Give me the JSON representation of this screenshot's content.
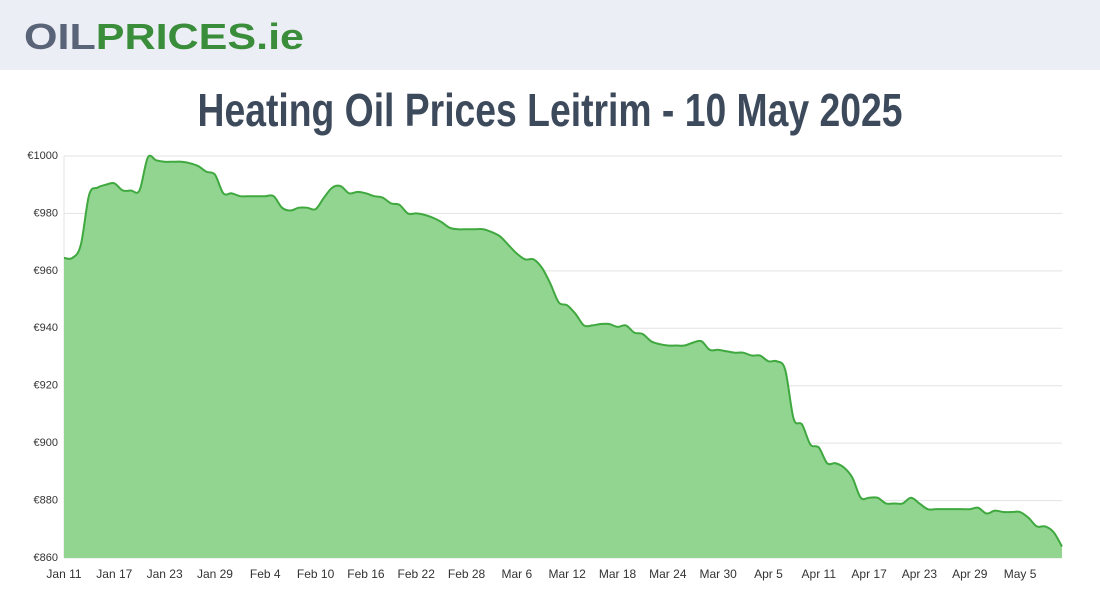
{
  "header": {
    "logo_part1": "OIL",
    "logo_part2": "PRICES.ie"
  },
  "chart_data": {
    "type": "area",
    "title": "Heating Oil Prices Leitrim - 10 May 2025",
    "categories": [
      "Jan 11",
      null,
      null,
      null,
      null,
      null,
      "Jan 17",
      null,
      null,
      null,
      null,
      null,
      "Jan 23",
      null,
      null,
      null,
      null,
      null,
      "Jan 29",
      null,
      null,
      null,
      null,
      null,
      "Feb 4",
      null,
      null,
      null,
      null,
      null,
      "Feb 10",
      null,
      null,
      null,
      null,
      null,
      "Feb 16",
      null,
      null,
      null,
      null,
      null,
      "Feb 22",
      null,
      null,
      null,
      null,
      null,
      "Feb 28",
      null,
      null,
      null,
      null,
      null,
      "Mar 6",
      null,
      null,
      null,
      null,
      null,
      "Mar 12",
      null,
      null,
      null,
      null,
      null,
      "Mar 18",
      null,
      null,
      null,
      null,
      null,
      "Mar 24",
      null,
      null,
      null,
      null,
      null,
      "Mar 30",
      null,
      null,
      null,
      null,
      null,
      "Apr 5",
      null,
      null,
      null,
      null,
      null,
      "Apr 11",
      null,
      null,
      null,
      null,
      null,
      "Apr 17",
      null,
      null,
      null,
      null,
      null,
      "Apr 23",
      null,
      null,
      null,
      null,
      null,
      "Apr 29",
      null,
      null,
      null,
      null,
      null,
      "May 5",
      null,
      null,
      null,
      null,
      null
    ],
    "values": [
      964.5,
      964.5,
      969,
      986.5,
      989,
      990,
      990.5,
      988,
      988,
      988,
      999.5,
      998.5,
      998,
      998,
      998,
      997.5,
      996.5,
      994.5,
      993.5,
      987,
      987,
      986,
      986,
      986,
      986,
      986,
      982,
      981,
      982,
      982,
      981.5,
      985.5,
      989,
      989.5,
      987,
      987.5,
      987,
      986,
      985.5,
      983.5,
      983,
      980,
      980,
      979.5,
      978.5,
      977,
      975,
      974.5,
      974.5,
      974.5,
      974.5,
      973.5,
      972,
      969,
      966,
      964,
      964,
      961,
      955.5,
      949,
      948,
      945,
      941,
      941,
      941.5,
      941.5,
      940.5,
      941,
      938.5,
      938,
      935.5,
      934.5,
      934,
      934,
      934,
      935,
      935.5,
      932.5,
      932.5,
      932,
      931.5,
      931.5,
      930.5,
      930.5,
      928.5,
      928.5,
      925.5,
      908.5,
      906.5,
      899.5,
      898.5,
      893,
      893,
      891.5,
      888,
      881,
      881,
      881,
      879,
      879,
      879,
      881,
      879,
      877,
      877,
      877,
      877,
      877,
      877,
      877.5,
      875.5,
      876.5,
      876,
      876,
      876,
      874,
      871,
      871,
      869,
      864
    ],
    "color": "#3fa83f",
    "fill_color": "#91d591",
    "ylim": [
      860,
      1000
    ],
    "yticks": [
      {
        "value": 860,
        "label": "€860"
      },
      {
        "value": 880,
        "label": "€880"
      },
      {
        "value": 900,
        "label": "€900"
      },
      {
        "value": 920,
        "label": "€920"
      },
      {
        "value": 940,
        "label": "€940"
      },
      {
        "value": 960,
        "label": "€960"
      },
      {
        "value": 980,
        "label": "€980"
      },
      {
        "value": 1000,
        "label": "€1000"
      }
    ],
    "grid": true
  }
}
